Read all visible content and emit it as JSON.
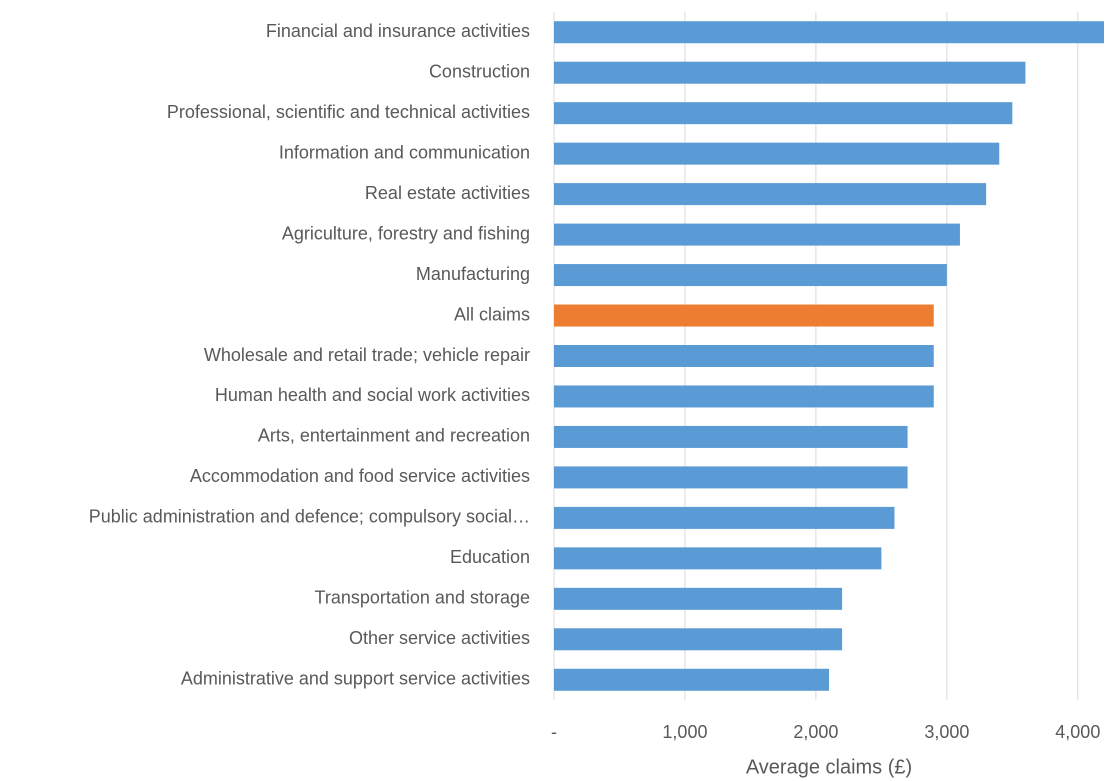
{
  "chart_data": {
    "type": "barh",
    "x_label": "Average claims (£)",
    "categories": [
      "Financial and insurance activities",
      "Construction",
      "Professional, scientific and technical activities",
      "Information and communication",
      "Real estate activities",
      "Agriculture, forestry and fishing",
      "Manufacturing",
      "All claims",
      "Wholesale and retail trade; vehicle repair",
      "Human health and social work activities",
      "Arts, entertainment and recreation",
      "Accommodation and food service activities",
      "Public administration and defence; compulsory social…",
      "Education",
      "Transportation and storage",
      "Other service activities",
      "Administrative and support service activities"
    ],
    "values": [
      4200,
      3600,
      3500,
      3400,
      3300,
      3100,
      3000,
      2900,
      2900,
      2900,
      2700,
      2700,
      2600,
      2500,
      2200,
      2200,
      2100
    ],
    "colors": [
      "#5b9bd5",
      "#5b9bd5",
      "#5b9bd5",
      "#5b9bd5",
      "#5b9bd5",
      "#5b9bd5",
      "#5b9bd5",
      "#ed7d31",
      "#5b9bd5",
      "#5b9bd5",
      "#5b9bd5",
      "#5b9bd5",
      "#5b9bd5",
      "#5b9bd5",
      "#5b9bd5",
      "#5b9bd5",
      "#5b9bd5"
    ],
    "xlim": [
      0,
      4200
    ],
    "xticks": [
      {
        "value": 0,
        "label": "-"
      },
      {
        "value": 1000,
        "label": "1,000"
      },
      {
        "value": 2000,
        "label": "2,000"
      },
      {
        "value": 3000,
        "label": "3,000"
      },
      {
        "value": 4000,
        "label": "4,000"
      }
    ],
    "grid": true
  }
}
